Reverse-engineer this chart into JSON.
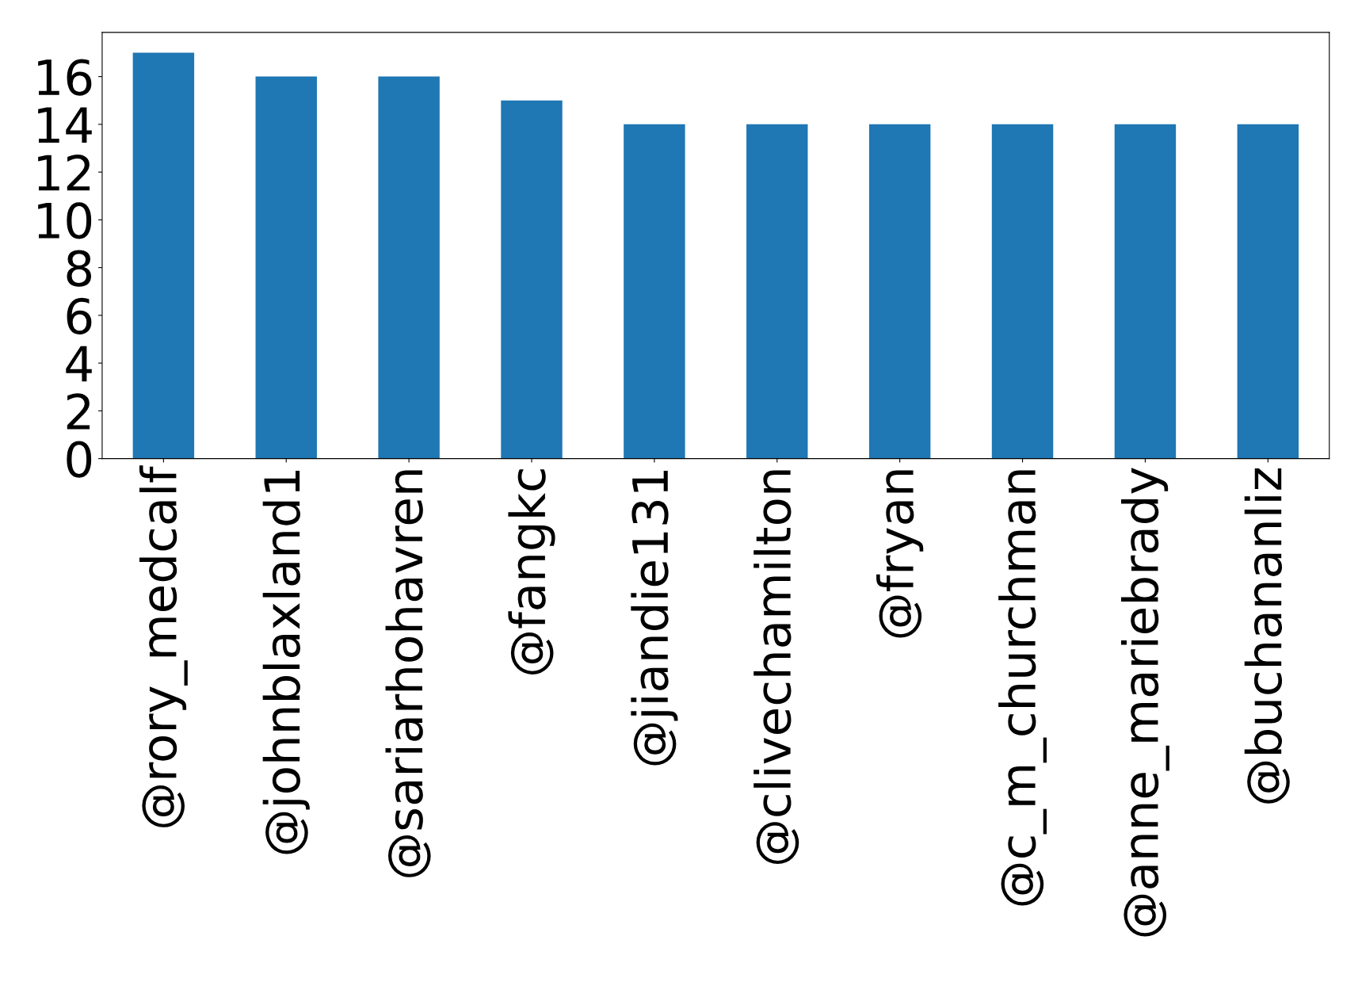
{
  "chart_data": {
    "type": "bar",
    "categories": [
      "@rory_medcalf",
      "@johnblaxland1",
      "@sariarhohavren",
      "@fangkc",
      "@jiandie131",
      "@clivechamilton",
      "@fryan",
      "@c_m_churchman",
      "@anne_mariebrady",
      "@buchananliz"
    ],
    "values": [
      17,
      16,
      16,
      15,
      14,
      14,
      14,
      14,
      14,
      14
    ],
    "color": "#1f77b4",
    "ylim": [
      0,
      17.85
    ],
    "yticks": [
      0,
      2,
      4,
      6,
      8,
      10,
      12,
      14,
      16
    ],
    "grid": false
  }
}
